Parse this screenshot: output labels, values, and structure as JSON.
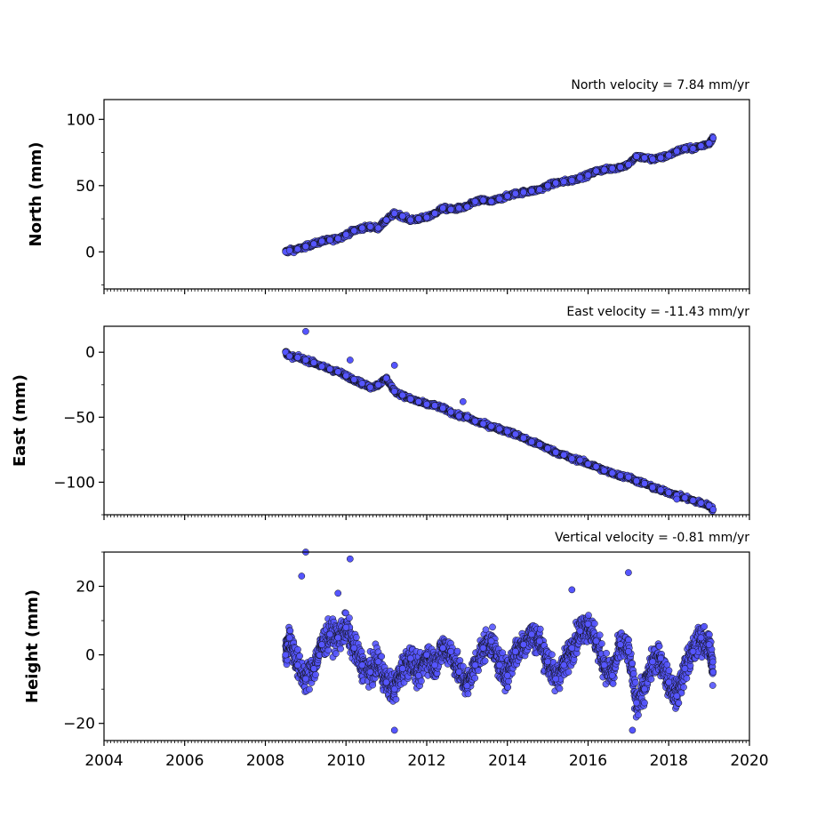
{
  "chart_data": [
    {
      "type": "scatter",
      "id": "north",
      "title": "North velocity = 7.84 mm/yr",
      "ylabel": "North (mm)",
      "xlim": [
        2004,
        2020
      ],
      "ylim": [
        -28,
        115
      ],
      "yticks": [
        0,
        50,
        100
      ],
      "yticklabels": [
        "0",
        "50",
        "100"
      ],
      "xticks": [
        2004,
        2006,
        2008,
        2010,
        2012,
        2014,
        2016,
        2018,
        2020
      ],
      "show_xticklabels": false,
      "series": [
        {
          "color": "#5555ff",
          "x": [
            2008.5,
            2008.6,
            2008.8,
            2009.0,
            2009.2,
            2009.4,
            2009.6,
            2009.8,
            2010.0,
            2010.2,
            2010.4,
            2010.6,
            2010.8,
            2011.0,
            2011.2,
            2011.4,
            2011.6,
            2011.8,
            2012.0,
            2012.2,
            2012.4,
            2012.6,
            2012.8,
            2013.0,
            2013.2,
            2013.4,
            2013.6,
            2013.8,
            2014.0,
            2014.2,
            2014.4,
            2014.6,
            2014.8,
            2015.0,
            2015.2,
            2015.4,
            2015.6,
            2015.8,
            2016.0,
            2016.2,
            2016.4,
            2016.6,
            2016.8,
            2017.0,
            2017.2,
            2017.4,
            2017.6,
            2017.8,
            2018.0,
            2018.2,
            2018.4,
            2018.6,
            2018.8,
            2019.0,
            2019.1
          ],
          "y": [
            0,
            1,
            2,
            4,
            6,
            8,
            9,
            10,
            13,
            16,
            18,
            19,
            18,
            24,
            29,
            27,
            24,
            25,
            26,
            29,
            33,
            32,
            33,
            34,
            38,
            39,
            38,
            40,
            42,
            44,
            45,
            46,
            47,
            50,
            52,
            53,
            54,
            56,
            58,
            61,
            62,
            63,
            64,
            66,
            72,
            71,
            70,
            71,
            73,
            76,
            78,
            78,
            80,
            82,
            86
          ]
        }
      ]
    },
    {
      "type": "scatter",
      "id": "east",
      "title": "East velocity = -11.43 mm/yr",
      "ylabel": "East (mm)",
      "xlim": [
        2004,
        2020
      ],
      "ylim": [
        -125,
        20
      ],
      "yticks": [
        0,
        -50,
        -100
      ],
      "yticklabels": [
        "0",
        "−50",
        "−100"
      ],
      "xticks": [
        2004,
        2006,
        2008,
        2010,
        2012,
        2014,
        2016,
        2018,
        2020
      ],
      "show_xticklabels": false,
      "series": [
        {
          "color": "#5555ff",
          "x": [
            2008.5,
            2008.6,
            2008.8,
            2009.0,
            2009.2,
            2009.4,
            2009.6,
            2009.8,
            2010.0,
            2010.2,
            2010.4,
            2010.6,
            2010.8,
            2011.0,
            2011.2,
            2011.4,
            2011.6,
            2011.8,
            2012.0,
            2012.2,
            2012.4,
            2012.6,
            2012.8,
            2013.0,
            2013.2,
            2013.4,
            2013.6,
            2013.8,
            2014.0,
            2014.2,
            2014.4,
            2014.6,
            2014.8,
            2015.0,
            2015.2,
            2015.4,
            2015.6,
            2015.8,
            2016.0,
            2016.2,
            2016.4,
            2016.6,
            2016.8,
            2017.0,
            2017.2,
            2017.4,
            2017.6,
            2017.8,
            2018.0,
            2018.2,
            2018.4,
            2018.6,
            2018.8,
            2019.0,
            2019.1
          ],
          "y": [
            0,
            -3,
            -4,
            -6,
            -8,
            -11,
            -13,
            -15,
            -18,
            -21,
            -24,
            -27,
            -25,
            -20,
            -30,
            -33,
            -36,
            -38,
            -40,
            -41,
            -43,
            -46,
            -49,
            -50,
            -53,
            -55,
            -57,
            -59,
            -61,
            -63,
            -66,
            -69,
            -71,
            -74,
            -77,
            -79,
            -82,
            -83,
            -86,
            -88,
            -91,
            -93,
            -95,
            -96,
            -99,
            -101,
            -104,
            -106,
            -108,
            -110,
            -112,
            -114,
            -116,
            -118,
            -121
          ],
          "outliers": {
            "x": [
              2009.0,
              2010.1,
              2011.2,
              2012.9,
              2018.2
            ],
            "y": [
              16,
              -6,
              -10,
              -38,
              -113
            ]
          }
        }
      ]
    },
    {
      "type": "scatter",
      "id": "height",
      "title": "Vertical velocity = -0.81 mm/yr",
      "ylabel": "Height (mm)",
      "xlim": [
        2004,
        2020
      ],
      "ylim": [
        -25,
        30
      ],
      "yticks": [
        20,
        0,
        -20
      ],
      "yticklabels": [
        "20",
        "0",
        "−20"
      ],
      "xticks": [
        2004,
        2006,
        2008,
        2010,
        2012,
        2014,
        2016,
        2018,
        2020
      ],
      "xticklabels": [
        "2004",
        "2006",
        "2008",
        "2010",
        "2012",
        "2014",
        "2016",
        "2018",
        "2020"
      ],
      "show_xticklabels": true,
      "series": [
        {
          "color": "#5555ff",
          "x": [
            2008.5,
            2008.6,
            2008.8,
            2009.0,
            2009.2,
            2009.4,
            2009.6,
            2009.8,
            2010.0,
            2010.2,
            2010.4,
            2010.6,
            2010.8,
            2011.0,
            2011.2,
            2011.4,
            2011.6,
            2011.8,
            2012.0,
            2012.2,
            2012.4,
            2012.6,
            2012.8,
            2013.0,
            2013.2,
            2013.4,
            2013.6,
            2013.8,
            2014.0,
            2014.2,
            2014.4,
            2014.6,
            2014.8,
            2015.0,
            2015.2,
            2015.4,
            2015.6,
            2015.8,
            2016.0,
            2016.2,
            2016.4,
            2016.6,
            2016.8,
            2017.0,
            2017.2,
            2017.4,
            2017.6,
            2017.8,
            2018.0,
            2018.2,
            2018.4,
            2018.6,
            2018.8,
            2019.0,
            2019.1
          ],
          "y": [
            0,
            5,
            -3,
            -7,
            -4,
            3,
            6,
            5,
            8,
            2,
            -3,
            -5,
            -2,
            -8,
            -10,
            -4,
            -1,
            -6,
            0,
            -3,
            2,
            1,
            -5,
            -9,
            -3,
            2,
            4,
            -3,
            -6,
            1,
            3,
            6,
            4,
            -2,
            -7,
            -3,
            2,
            7,
            9,
            4,
            -3,
            -6,
            3,
            1,
            -14,
            -10,
            -2,
            -1,
            -8,
            -12,
            -4,
            1,
            5,
            3,
            -5
          ],
          "spread": 4,
          "outliers": {
            "x": [
              2008.9,
              2009.0,
              2010.1,
              2017.0,
              2011.2,
              2017.1,
              2009.8,
              2015.6
            ],
            "y": [
              23,
              30,
              28,
              24,
              -22,
              -22,
              18,
              19
            ]
          }
        }
      ]
    }
  ]
}
